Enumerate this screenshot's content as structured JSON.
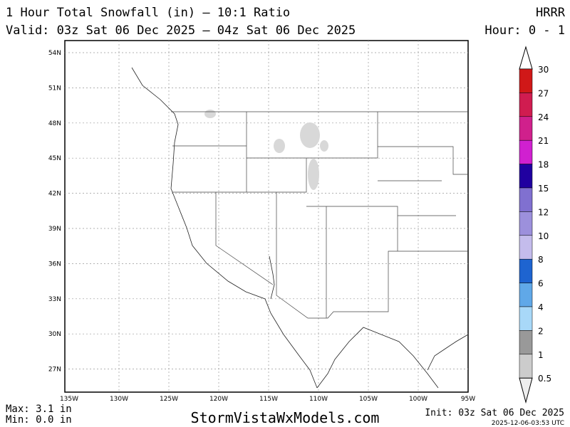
{
  "header": {
    "title": "1 Hour Total Snowfall (in) — 10:1 Ratio",
    "model": "HRRR",
    "valid": "Valid: 03z Sat 06 Dec 2025 — 04z Sat 06 Dec 2025",
    "hour": "Hour: 0 - 1"
  },
  "map": {
    "lat_labels": [
      "54N",
      "51N",
      "48N",
      "45N",
      "42N",
      "39N",
      "36N",
      "33N",
      "30N",
      "27N"
    ],
    "lon_labels": [
      "135W",
      "130W",
      "125W",
      "120W",
      "115W",
      "110W",
      "105W",
      "100W",
      "95W"
    ]
  },
  "colorbar": {
    "levels": [
      {
        "label": 30,
        "color": "#d01818"
      },
      {
        "label": 27,
        "color": "#d01c50"
      },
      {
        "label": 24,
        "color": "#d0208c"
      },
      {
        "label": 21,
        "color": "#d020d0"
      },
      {
        "label": 18,
        "color": "#2000a0"
      },
      {
        "label": 15,
        "color": "#8070d0"
      },
      {
        "label": 12,
        "color": "#9c90dc"
      },
      {
        "label": 10,
        "color": "#c4bcec"
      },
      {
        "label": 8,
        "color": "#1e64d0"
      },
      {
        "label": 6,
        "color": "#60a8e8"
      },
      {
        "label": 4,
        "color": "#a8d8f8"
      },
      {
        "label": 2,
        "color": "#999999"
      },
      {
        "label": 1,
        "color": "#cccccc"
      },
      {
        "label": 0.5,
        "color": "#eeeeee"
      }
    ]
  },
  "footer": {
    "max": "Max: 3.1 in",
    "min": "Min: 0.0 in",
    "site": "StormVistaWxModels.com",
    "init": "Init: 03z Sat 06 Dec 2025",
    "stamp": "2025-12-06-03:53 UTC"
  }
}
